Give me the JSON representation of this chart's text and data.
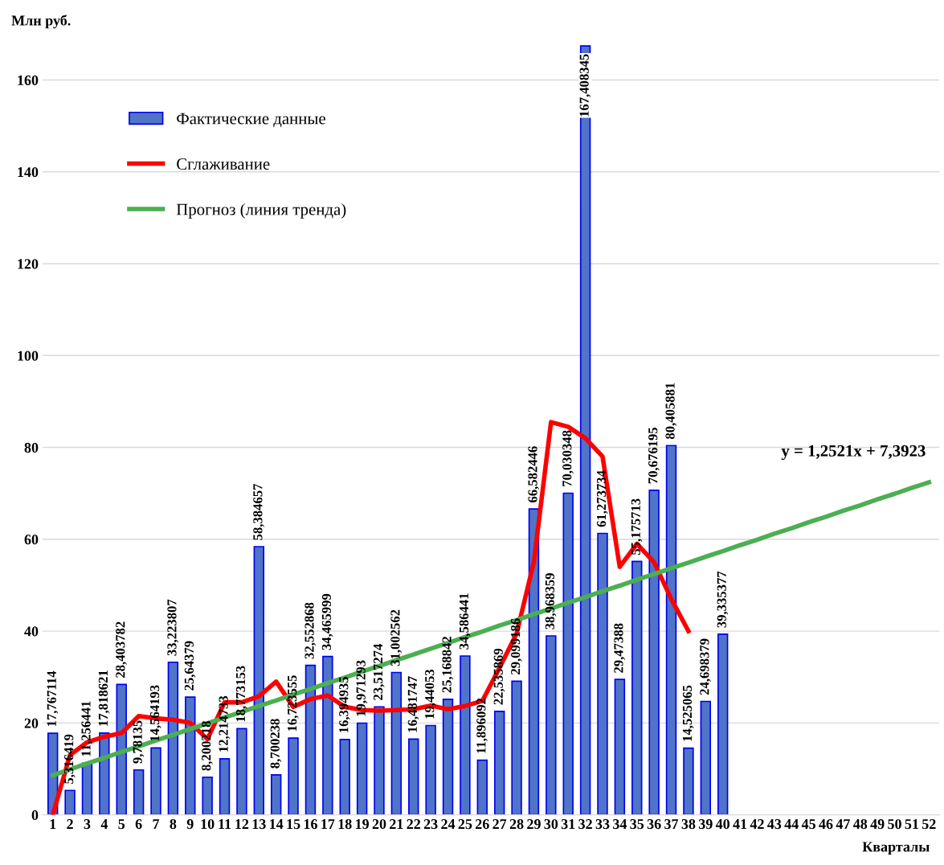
{
  "chart_data": {
    "type": "bar",
    "ylabel": "Млн руб.",
    "xlabel": "Кварталы",
    "categories": [
      "1",
      "2",
      "3",
      "4",
      "5",
      "6",
      "7",
      "8",
      "9",
      "10",
      "11",
      "12",
      "13",
      "14",
      "15",
      "16",
      "17",
      "18",
      "19",
      "20",
      "21",
      "22",
      "23",
      "24",
      "25",
      "26",
      "27",
      "28",
      "29",
      "30",
      "31",
      "32",
      "33",
      "34",
      "35",
      "36",
      "37",
      "38",
      "39",
      "40",
      "41",
      "42",
      "43",
      "44",
      "45",
      "46",
      "47",
      "48",
      "49",
      "50",
      "51",
      "52"
    ],
    "series": [
      {
        "name": "Фактические данные",
        "color": "#4f74c8",
        "values": [
          17.767114,
          5.316419,
          11.256441,
          17.818621,
          28.403782,
          9.78135,
          14.564193,
          33.223807,
          25.64379,
          8.200218,
          12.214733,
          18.773153,
          58.384657,
          8.700238,
          16.723555,
          32.552868,
          34.465999,
          16.394935,
          19.971293,
          23.517274,
          31.002562,
          16.481747,
          19.44053,
          25.168842,
          34.586441,
          11.896092,
          22.535869,
          29.099186,
          66.582446,
          38.968359,
          70.030348,
          167.408345,
          61.273734,
          29.47388,
          55.175713,
          70.676195,
          80.405881,
          14.525065,
          24.698379,
          39.335377,
          null,
          null,
          null,
          null,
          null,
          null,
          null,
          null,
          null,
          null,
          null,
          null
        ],
        "value_labels": [
          "17,767114",
          "5,316419",
          "11,256441",
          "17,818621",
          "28,403782",
          "9,78135",
          "14,564193",
          "33,223807",
          "25,64379",
          "8,200218",
          "12,214733",
          "18,773153",
          "58,384657",
          "8,700238",
          "16,723555",
          "32,552868",
          "34,465999",
          "16,394935",
          "19,971293",
          "23,517274",
          "31,002562",
          "16,481747",
          "19,44053",
          "25,168842",
          "34,586441",
          "11,896092",
          "22,535869",
          "29,099186",
          "66,582446",
          "38,968359",
          "70,030348",
          "167,408345",
          "61,273734",
          "29,47388",
          "55,175713",
          "70,676195",
          "80,405881",
          "14,525065",
          "24,698379",
          "39,335377",
          null,
          null,
          null,
          null,
          null,
          null,
          null,
          null,
          null,
          null,
          null,
          null
        ]
      },
      {
        "name": "Сглаживание",
        "type": "line",
        "color": "#ff0000",
        "values": [
          0,
          13,
          15.8,
          17,
          17.8,
          21.5,
          21,
          20.7,
          20,
          16.5,
          24.5,
          24.5,
          25.8,
          29,
          23.5,
          25.2,
          26,
          23.5,
          22.8,
          22.7,
          22.8,
          23,
          23.8,
          23,
          23.7,
          24.8,
          32,
          39.5,
          55,
          85.5,
          84.5,
          82,
          78,
          54,
          59,
          55,
          47,
          40,
          null,
          null,
          null,
          null,
          null,
          null,
          null,
          null,
          null,
          null,
          null,
          null,
          null,
          null
        ]
      },
      {
        "name": "Прогноз (линия тренда)",
        "type": "line",
        "color": "#4caf50",
        "values": [
          8.6,
          9.9,
          11.2,
          12.4,
          13.7,
          14.9,
          16.2,
          17.4,
          18.7,
          19.9,
          21.2,
          22.4,
          23.7,
          24.9,
          26.2,
          27.4,
          28.7,
          29.9,
          31.2,
          32.4,
          33.7,
          34.9,
          36.2,
          37.4,
          38.7,
          39.9,
          41.2,
          42.4,
          43.7,
          44.9,
          46.2,
          47.4,
          48.7,
          49.9,
          51.2,
          52.4,
          53.7,
          54.9,
          56.2,
          57.4,
          58.7,
          59.9,
          61.2,
          62.4,
          63.7,
          64.9,
          66.2,
          67.4,
          68.7,
          69.9,
          71.2,
          72.4
        ]
      }
    ],
    "annotations": [
      "y = 1,2521x + 7,3923"
    ],
    "ylim": [
      0,
      168
    ],
    "yticks": [
      0,
      20,
      40,
      60,
      80,
      100,
      120,
      140,
      160
    ],
    "grid": "y",
    "legend": "top left"
  }
}
